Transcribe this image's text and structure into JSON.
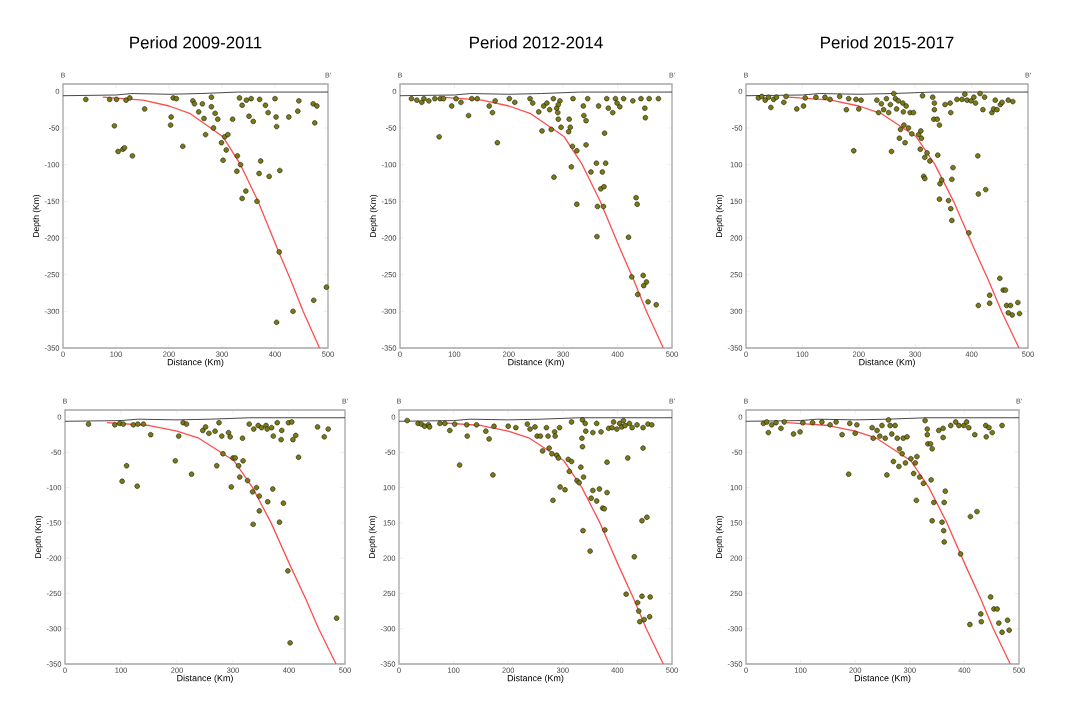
{
  "chart_data": [
    {
      "type": "scatter",
      "title": "Period 2009-2011",
      "xlabel": "Distance  (Km)",
      "ylabel": "Depth (Km)",
      "annotations": [
        "B",
        "B'"
      ],
      "xlim": [
        0,
        500
      ],
      "ylim": [
        -350,
        10
      ],
      "xticks": [
        0,
        100,
        200,
        300,
        400,
        500
      ],
      "yticks": [
        0,
        -50,
        -100,
        -150,
        -200,
        -250,
        -300,
        -350
      ],
      "series": [
        {
          "color": "#7a7a14",
          "marker": "circle",
          "x": [
            43,
            88,
            101,
            119,
            126,
            97,
            104,
            113,
            116,
            131,
            154,
            203,
            204,
            208,
            214,
            226,
            245,
            248,
            256,
            263,
            266,
            269,
            280,
            280,
            284,
            287,
            292,
            299,
            302,
            305,
            311,
            308,
            320,
            329,
            328,
            335,
            338,
            345,
            333,
            338,
            346,
            355,
            351,
            359,
            371,
            373,
            370,
            366,
            382,
            387,
            389,
            400,
            402,
            403,
            409,
            408,
            403,
            426,
            434,
            445,
            443,
            472,
            479,
            475,
            473,
            497
          ],
          "values": [
            -11,
            -11,
            -11,
            -12,
            -9,
            -47,
            -82,
            -79,
            -77,
            -88,
            -24,
            -46,
            -35,
            -9,
            -10,
            -75,
            -13,
            -17,
            -28,
            -17,
            -37,
            -59,
            -21,
            -8,
            -50,
            -30,
            -38,
            -70,
            -94,
            -62,
            -59,
            -80,
            -38,
            -88,
            -109,
            -100,
            -146,
            -136,
            -9,
            -19,
            -12,
            -10,
            -34,
            -41,
            -11,
            -95,
            -112,
            -150,
            -19,
            -29,
            -116,
            -10,
            -35,
            -48,
            -108,
            -219,
            -315,
            -35,
            -300,
            -13,
            -27,
            -17,
            -20,
            -43,
            -285,
            -267
          ]
        },
        {
          "type": "line",
          "marker": "none",
          "color": "#ff4d4d",
          "x": [
            75,
            151,
            200,
            239,
            302,
            335,
            368,
            403,
            430,
            453,
            484
          ],
          "values": [
            -8,
            -12,
            -20,
            -30,
            -62,
            -100,
            -150,
            -212,
            -258,
            -300,
            -350
          ]
        },
        {
          "type": "line",
          "marker": "none",
          "color": "#333333",
          "x": [
            0,
            100,
            130,
            200,
            260,
            330,
            400,
            500
          ],
          "values": [
            -6,
            -5,
            -3,
            -4,
            -3,
            -1,
            -1,
            -1
          ]
        }
      ]
    },
    {
      "type": "scatter",
      "title": "Period 2012-2014",
      "xlabel": "Distance  (Km)",
      "ylabel": "Depth (Km)",
      "annotations": [
        "B",
        "B'"
      ],
      "xlim": [
        0,
        500
      ],
      "ylim": [
        -350,
        10
      ],
      "xticks": [
        0,
        100,
        200,
        300,
        400,
        500
      ],
      "yticks": [
        0,
        -50,
        -100,
        -150,
        -200,
        -250,
        -300,
        -350
      ],
      "series": [
        {
          "color": "#7a7a14",
          "marker": "circle",
          "x": [
            21,
            31,
            40,
            44,
            53,
            64,
            74,
            80,
            72,
            95,
            103,
            112,
            126,
            132,
            142,
            164,
            170,
            175,
            179,
            201,
            211,
            239,
            244,
            255,
            261,
            264,
            270,
            275,
            278,
            282,
            283,
            288,
            290,
            291,
            294,
            296,
            291,
            310,
            311,
            313,
            315,
            318,
            317,
            325,
            325,
            337,
            338,
            342,
            342,
            345,
            351,
            361,
            362,
            363,
            365,
            369,
            372,
            374,
            375,
            376,
            378,
            380,
            383,
            391,
            396,
            399,
            404,
            411,
            420,
            426,
            428,
            434,
            436,
            437,
            443,
            447,
            448,
            450,
            451,
            453,
            456,
            458,
            471,
            475
          ],
          "values": [
            -10,
            -12,
            -15,
            -10,
            -13,
            -10,
            -10,
            -10,
            -62,
            -20,
            -10,
            -15,
            -33,
            -10,
            -10,
            -20,
            -29,
            -13,
            -70,
            -10,
            -15,
            -10,
            -16,
            -28,
            -54,
            -20,
            -16,
            -25,
            -52,
            -10,
            -117,
            -23,
            -29,
            -38,
            -13,
            -49,
            -18,
            -55,
            -38,
            -49,
            -103,
            -10,
            -75,
            -81,
            -154,
            -20,
            -33,
            -40,
            -73,
            -10,
            -110,
            -98,
            -198,
            -157,
            -20,
            -133,
            -110,
            -157,
            -130,
            -57,
            -98,
            -10,
            -23,
            -29,
            -10,
            -16,
            -21,
            -10,
            -199,
            -253,
            -13,
            -145,
            -154,
            -277,
            -10,
            -251,
            -265,
            -23,
            -36,
            -260,
            -287,
            -10,
            -291,
            -10
          ]
        },
        {
          "type": "line",
          "marker": "none",
          "color": "#ff4d4d",
          "x": [
            75,
            151,
            200,
            239,
            302,
            335,
            368,
            403,
            430,
            453,
            484
          ],
          "values": [
            -8,
            -12,
            -20,
            -30,
            -62,
            -100,
            -150,
            -212,
            -258,
            -300,
            -350
          ]
        },
        {
          "type": "line",
          "marker": "none",
          "color": "#333333",
          "x": [
            0,
            100,
            130,
            200,
            260,
            330,
            400,
            500
          ],
          "values": [
            -6,
            -5,
            -3,
            -4,
            -3,
            -1,
            -1,
            -1
          ]
        }
      ]
    },
    {
      "type": "scatter",
      "title": "Period 2015-2017",
      "xlabel": "Distance  (Km)",
      "ylabel": "Depth (Km)",
      "annotations": [
        "B",
        "B'"
      ],
      "xlim": [
        0,
        500
      ],
      "ylim": [
        -350,
        10
      ],
      "xticks": [
        0,
        100,
        200,
        300,
        400,
        500
      ],
      "yticks": [
        0,
        {
          "value": -50,
          "label": "-50"
        },
        {
          "value": -100,
          "label": "100"
        },
        {
          "value": -150,
          "label": "150"
        },
        {
          "value": -200,
          "label": "200"
        },
        {
          "value": -250,
          "label": "250"
        },
        {
          "value": -300,
          "label": "300"
        },
        {
          "value": -350,
          "label": "-350"
        }
      ],
      "series": [
        {
          "color": "#7a7a14",
          "marker": "circle",
          "x": [
            22,
            28,
            34,
            40,
            44,
            49,
            54,
            67,
            71,
            90,
            102,
            105,
            124,
            140,
            149,
            166,
            178,
            182,
            191,
            195,
            200,
            204,
            232,
            235,
            240,
            244,
            249,
            253,
            256,
            258,
            262,
            265,
            267,
            270,
            272,
            274,
            278,
            279,
            280,
            282,
            284,
            288,
            291,
            294,
            297,
            306,
            310,
            311,
            309,
            313,
            317,
            321,
            326,
            315,
            317,
            331,
            334,
            334,
            333,
            339,
            340,
            343,
            343,
            344,
            347,
            353,
            359,
            362,
            363,
            363,
            365,
            365,
            367,
            374,
            383,
            388,
            392,
            395,
            399,
            404,
            407,
            411,
            412,
            412,
            415,
            420,
            423,
            425,
            432,
            432,
            436,
            439,
            442,
            445,
            450,
            451,
            454,
            456,
            460,
            462,
            465,
            465,
            469,
            472,
            473,
            482,
            485
          ],
          "values": [
            -9,
            -7,
            -12,
            -8,
            -22,
            -11,
            -8,
            -15,
            -7,
            -24,
            -20,
            -9,
            -8,
            -8,
            -11,
            -7,
            -25,
            -10,
            -81,
            -11,
            -24,
            -12,
            -12,
            -29,
            -17,
            -25,
            -10,
            -29,
            -18,
            -82,
            -3,
            -10,
            -24,
            -13,
            -64,
            -52,
            -16,
            -28,
            -46,
            -70,
            -20,
            -50,
            -29,
            -58,
            -29,
            -59,
            -54,
            -64,
            -79,
            -6,
            -90,
            -84,
            -95,
            -116,
            -119,
            -8,
            -16,
            -25,
            -38,
            -38,
            -87,
            -46,
            -147,
            -126,
            -121,
            -18,
            -149,
            -16,
            -29,
            -160,
            -176,
            -120,
            -104,
            -11,
            -11,
            -4,
            -12,
            -193,
            -13,
            -8,
            -16,
            -88,
            -140,
            -292,
            -3,
            -25,
            -8,
            -134,
            -278,
            -289,
            -29,
            -24,
            -12,
            -25,
            -255,
            -18,
            -15,
            -271,
            -271,
            -292,
            -12,
            -302,
            -292,
            -305,
            -14,
            -288,
            -303
          ]
        },
        {
          "type": "line",
          "marker": "none",
          "color": "#ff4d4d",
          "x": [
            75,
            151,
            200,
            239,
            302,
            335,
            368,
            403,
            430,
            453,
            484
          ],
          "values": [
            -8,
            -12,
            -20,
            -30,
            -62,
            -100,
            -150,
            -212,
            -258,
            -300,
            -350
          ]
        },
        {
          "type": "line",
          "marker": "none",
          "color": "#333333",
          "x": [
            0,
            100,
            130,
            200,
            260,
            330,
            400,
            500
          ],
          "values": [
            -6,
            -5,
            -3,
            -4,
            -3,
            -1,
            -1,
            -1
          ]
        }
      ]
    },
    {
      "type": "scatter",
      "xlabel": "Distance  (Km)",
      "ylabel": "Depth (Km)",
      "annotations": [
        "B",
        "B'"
      ],
      "xlim": [
        0,
        500
      ],
      "ylim": [
        -350,
        10
      ],
      "xticks": [
        0,
        100,
        200,
        300,
        400,
        500
      ],
      "yticks": [
        0,
        -50,
        -100,
        -150,
        -200,
        -250,
        -300,
        -350
      ],
      "series": [
        {
          "color": "#7a7a14",
          "marker": "circle",
          "x": [
            42,
            89,
            98,
            104,
            122,
            130,
            140,
            110,
            102,
            129,
            153,
            197,
            203,
            211,
            217,
            226,
            246,
            251,
            257,
            268,
            271,
            275,
            280,
            282,
            292,
            295,
            297,
            300,
            304,
            310,
            312,
            317,
            318,
            326,
            329,
            335,
            336,
            337,
            342,
            345,
            347,
            347,
            351,
            359,
            361,
            362,
            369,
            371,
            372,
            379,
            383,
            387,
            386,
            390,
            399,
            405,
            398,
            402,
            407,
            412,
            417,
            451,
            463,
            470,
            485
          ],
          "values": [
            -10,
            -11,
            -9,
            -10,
            -11,
            -10,
            -10,
            -69,
            -91,
            -98,
            -25,
            -62,
            -27,
            -8,
            -10,
            -81,
            -19,
            -14,
            -23,
            -20,
            -69,
            -8,
            -27,
            -52,
            -22,
            -28,
            -99,
            -58,
            -58,
            -69,
            -85,
            -30,
            -62,
            -90,
            -10,
            -106,
            -152,
            -17,
            -100,
            -12,
            -112,
            -133,
            -15,
            -12,
            -17,
            -120,
            -15,
            -102,
            -27,
            -8,
            -149,
            -19,
            -32,
            -122,
            -8,
            -7,
            -218,
            -320,
            -32,
            -26,
            -57,
            -14,
            -28,
            -17,
            -285
          ]
        },
        {
          "type": "line",
          "marker": "none",
          "color": "#ff4d4d",
          "x": [
            75,
            151,
            200,
            239,
            302,
            335,
            368,
            403,
            430,
            453,
            484
          ],
          "values": [
            -8,
            -12,
            -20,
            -30,
            -62,
            -100,
            -150,
            -212,
            -258,
            -300,
            -350
          ]
        },
        {
          "type": "line",
          "marker": "none",
          "color": "#333333",
          "x": [
            0,
            100,
            130,
            200,
            260,
            330,
            400,
            500
          ],
          "values": [
            -6,
            -5,
            -3,
            -4,
            -3,
            -1,
            -1,
            -1
          ]
        }
      ]
    },
    {
      "type": "scatter",
      "xlabel": "Distance  (Km)",
      "ylabel": "Depth (Km)",
      "annotations": [
        "B",
        "B'"
      ],
      "xlim": [
        0,
        500
      ],
      "ylim": [
        -350,
        10
      ],
      "xticks": [
        0,
        100,
        200,
        300,
        400,
        500
      ],
      "yticks": [
        0,
        {
          "value": -50,
          "label": "-50"
        },
        {
          "value": -100,
          "label": "100"
        },
        {
          "value": -150,
          "label": "150"
        },
        {
          "value": -200,
          "label": "200"
        },
        {
          "value": -250,
          "label": "250"
        },
        {
          "value": -300,
          "label": "-300"
        },
        {
          "value": -350,
          "label": "-350"
        }
      ],
      "series": [
        {
          "color": "#7a7a14",
          "marker": "circle",
          "x": [
            15,
            35,
            41,
            47,
            54,
            56,
            75,
            84,
            93,
            102,
            111,
            124,
            125,
            142,
            159,
            165,
            172,
            174,
            200,
            214,
            235,
            240,
            249,
            253,
            259,
            263,
            270,
            273,
            275,
            280,
            282,
            285,
            286,
            289,
            292,
            294,
            295,
            304,
            310,
            312,
            316,
            316,
            326,
            330,
            333,
            335,
            336,
            336,
            337,
            338,
            341,
            342,
            350,
            352,
            355,
            355,
            362,
            362,
            367,
            370,
            373,
            376,
            377,
            381,
            381,
            384,
            390,
            393,
            399,
            404,
            408,
            411,
            414,
            416,
            419,
            422,
            427,
            431,
            436,
            437,
            439,
            441,
            445,
            445,
            447,
            447,
            449,
            454,
            456,
            459,
            460,
            463
          ],
          "values": [
            -5,
            -9,
            -10,
            -13,
            -11,
            -14,
            -9,
            -9,
            -19,
            -10,
            -68,
            -11,
            -27,
            -11,
            -20,
            -31,
            -82,
            -13,
            -13,
            -15,
            -10,
            -17,
            -14,
            -27,
            -27,
            -48,
            -15,
            -27,
            -44,
            -52,
            -118,
            -21,
            -27,
            -54,
            -58,
            -15,
            -99,
            -103,
            -60,
            -77,
            -63,
            -7,
            -90,
            -93,
            -71,
            -30,
            -42,
            -4,
            -161,
            -85,
            -9,
            -20,
            -190,
            -115,
            -22,
            -104,
            -9,
            -119,
            -102,
            -21,
            -129,
            -130,
            -160,
            -64,
            -107,
            -16,
            -15,
            -7,
            -17,
            -9,
            -14,
            -5,
            -12,
            -251,
            -58,
            -9,
            -15,
            -198,
            -11,
            -263,
            -275,
            -290,
            -147,
            -254,
            -44,
            -15,
            -287,
            -142,
            -10,
            -283,
            -255,
            -11
          ]
        },
        {
          "type": "line",
          "marker": "none",
          "color": "#ff4d4d",
          "x": [
            75,
            151,
            200,
            239,
            302,
            335,
            368,
            403,
            430,
            453,
            484
          ],
          "values": [
            -8,
            -12,
            -20,
            -30,
            -62,
            -100,
            -150,
            -212,
            -258,
            -300,
            -350
          ]
        },
        {
          "type": "line",
          "marker": "none",
          "color": "#333333",
          "x": [
            0,
            100,
            130,
            200,
            260,
            330,
            400,
            500
          ],
          "values": [
            -6,
            -5,
            -3,
            -4,
            -3,
            -1,
            -1,
            -1
          ]
        }
      ]
    },
    {
      "type": "scatter",
      "xlabel": "Distance  (Km)",
      "ylabel": "Depth (Km)",
      "annotations": [
        "B",
        "B'"
      ],
      "xlim": [
        0,
        500
      ],
      "ylim": [
        -350,
        10
      ],
      "xticks": [
        0,
        100,
        200,
        300,
        400,
        500
      ],
      "yticks": [
        0,
        {
          "value": -50,
          "label": "-50"
        },
        {
          "value": -100,
          "label": "100"
        },
        {
          "value": -150,
          "label": "150"
        },
        {
          "value": -200,
          "label": "200"
        },
        {
          "value": -250,
          "label": "250"
        },
        {
          "value": -300,
          "label": "-300"
        },
        {
          "value": -350,
          "label": "-350"
        }
      ],
      "series": [
        {
          "color": "#7a7a14",
          "marker": "circle",
          "x": [
            32,
            38,
            41,
            47,
            55,
            64,
            70,
            87,
            99,
            104,
            122,
            139,
            154,
            165,
            176,
            188,
            190,
            200,
            203,
            231,
            233,
            240,
            245,
            249,
            255,
            258,
            261,
            264,
            267,
            270,
            273,
            277,
            280,
            281,
            286,
            288,
            292,
            295,
            302,
            307,
            310,
            313,
            312,
            318,
            325,
            328,
            332,
            332,
            333,
            338,
            339,
            341,
            341,
            344,
            353,
            361,
            361,
            359,
            362,
            363,
            363,
            365,
            375,
            384,
            390,
            393,
            399,
            404,
            408,
            411,
            410,
            419,
            423,
            430,
            431,
            439,
            440,
            445,
            448,
            451,
            454,
            460,
            463,
            469,
            469,
            479,
            482
          ],
          "values": [
            -9,
            -7,
            -22,
            -11,
            -8,
            -16,
            -7,
            -24,
            -21,
            -8,
            -8,
            -7,
            -11,
            -7,
            -25,
            -81,
            -9,
            -23,
            -11,
            -15,
            -30,
            -19,
            -27,
            -12,
            -30,
            -82,
            -4,
            -12,
            -24,
            -63,
            -12,
            -30,
            -70,
            -45,
            -52,
            -30,
            -65,
            -28,
            -59,
            -80,
            -65,
            -56,
            -118,
            -85,
            -94,
            -5,
            -17,
            -25,
            -38,
            -38,
            -89,
            -45,
            -147,
            -121,
            -19,
            -16,
            -29,
            -149,
            -161,
            -177,
            -121,
            -105,
            -12,
            -7,
            -12,
            -194,
            -12,
            -7,
            -15,
            -141,
            -294,
            -25,
            -134,
            -279,
            -290,
            -12,
            -28,
            -15,
            -255,
            -22,
            -272,
            -272,
            -292,
            -12,
            -305,
            -288,
            -302
          ]
        },
        {
          "type": "line",
          "marker": "none",
          "color": "#ff4d4d",
          "x": [
            75,
            151,
            200,
            239,
            302,
            335,
            368,
            403,
            430,
            453,
            484
          ],
          "values": [
            -8,
            -12,
            -20,
            -30,
            -62,
            -100,
            -150,
            -212,
            -258,
            -300,
            -350
          ]
        },
        {
          "type": "line",
          "marker": "none",
          "color": "#333333",
          "x": [
            0,
            100,
            130,
            200,
            260,
            330,
            400,
            500
          ],
          "values": [
            -6,
            -5,
            -3,
            -4,
            -3,
            -1,
            -1,
            -1
          ]
        }
      ]
    }
  ]
}
